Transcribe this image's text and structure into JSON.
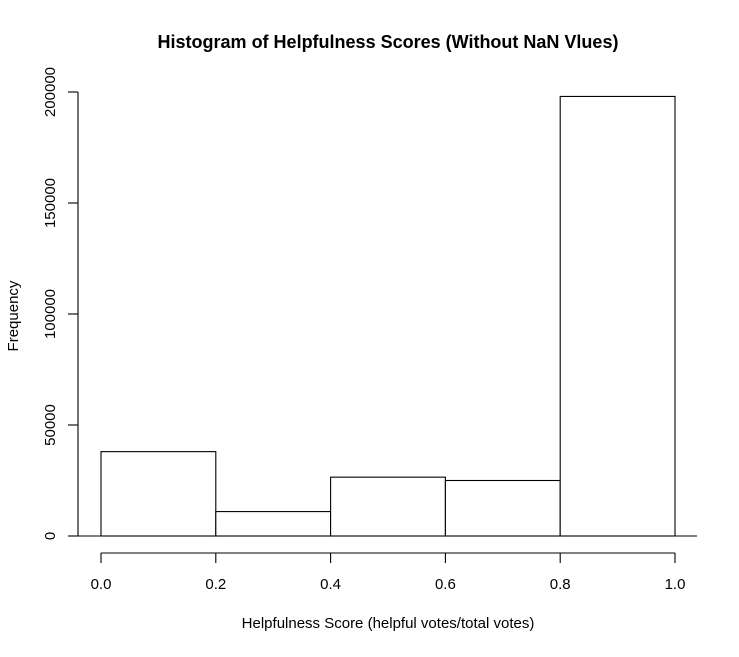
{
  "chart_data": {
    "type": "bar",
    "title": "Histogram of Helpfulness Scores (Without NaN Vlues)",
    "xlabel": "Helpfulness Score (helpful votes/total votes)",
    "ylabel": "Frequency",
    "bins": [
      {
        "from": 0.0,
        "to": 0.2,
        "count": 38000
      },
      {
        "from": 0.2,
        "to": 0.4,
        "count": 11000
      },
      {
        "from": 0.4,
        "to": 0.6,
        "count": 26500
      },
      {
        "from": 0.6,
        "to": 0.8,
        "count": 25000
      },
      {
        "from": 0.8,
        "to": 1.0,
        "count": 198000
      }
    ],
    "xlim": [
      0.0,
      1.0
    ],
    "ylim": [
      0,
      200000
    ],
    "x_ticks": [
      0.0,
      0.2,
      0.4,
      0.6,
      0.8,
      1.0
    ],
    "x_tick_labels": [
      "0.0",
      "0.2",
      "0.4",
      "0.6",
      "0.8",
      "1.0"
    ],
    "y_ticks": [
      0,
      50000,
      100000,
      150000,
      200000
    ],
    "y_tick_labels": [
      "0",
      "50000",
      "100000",
      "150000",
      "200000"
    ],
    "grid": false,
    "legend": "none",
    "bar_fill": "#ffffff",
    "bar_stroke": "#000000"
  }
}
